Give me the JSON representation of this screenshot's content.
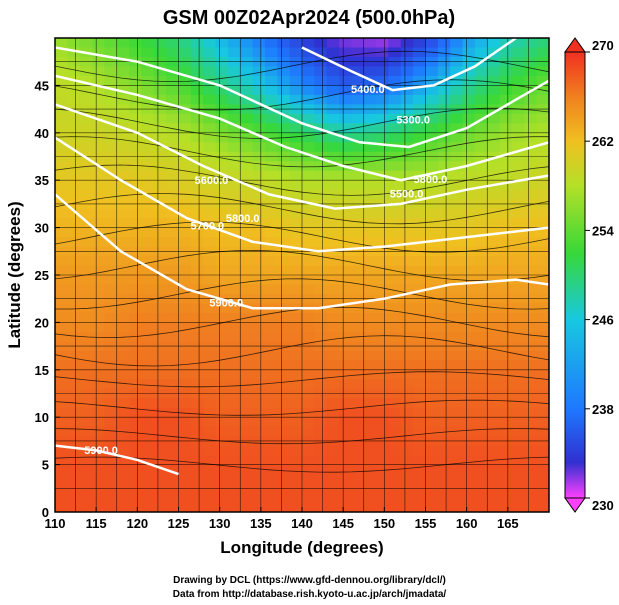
{
  "chart_data": {
    "type": "heatmap",
    "title": "GSM 00Z02Apr2024 (500.0hPa)",
    "xlabel": "Longitude (degrees)",
    "ylabel": "Latitude  (degrees)",
    "xlim": [
      110,
      170
    ],
    "ylim": [
      0,
      50
    ],
    "x_ticks": [
      "110",
      "115",
      "120",
      "125",
      "130",
      "135",
      "140",
      "145",
      "150",
      "155",
      "160",
      "165"
    ],
    "y_ticks": [
      "0",
      "5",
      "10",
      "15",
      "20",
      "25",
      "30",
      "35",
      "40",
      "45"
    ],
    "colorbar": {
      "min": 230,
      "max": 270,
      "tick_labels": [
        "230",
        "238",
        "246",
        "254",
        "262",
        "270"
      ],
      "colors": [
        "#ff40ff",
        "#3030d0",
        "#1e78ff",
        "#18c8e0",
        "#38d838",
        "#b4e028",
        "#f0c020",
        "#f08020",
        "#f03020"
      ]
    },
    "contour_labels": [
      "5400.0",
      "5400.0",
      "5300.0",
      "5800.0",
      "5500.0",
      "5600.0",
      "5700.0",
      "5800.0",
      "5900.0",
      "5900.0"
    ],
    "contours_m": [
      {
        "level": 5400,
        "points": [
          [
            140,
            49
          ],
          [
            146,
            46.5
          ],
          [
            151,
            44.5
          ],
          [
            156,
            45
          ],
          [
            161,
            47
          ],
          [
            166,
            50
          ]
        ]
      },
      {
        "level": 5500,
        "points": [
          [
            110,
            49
          ],
          [
            120,
            47.5
          ],
          [
            130,
            45
          ],
          [
            140,
            41
          ],
          [
            147,
            39
          ],
          [
            153,
            38.5
          ],
          [
            160,
            40.5
          ],
          [
            166,
            43.5
          ],
          [
            170,
            45.5
          ]
        ]
      },
      {
        "level": 5600,
        "points": [
          [
            110,
            46
          ],
          [
            120,
            44
          ],
          [
            130,
            41.5
          ],
          [
            138,
            38.5
          ],
          [
            145,
            36.5
          ],
          [
            152,
            35
          ],
          [
            160,
            36.5
          ],
          [
            170,
            39
          ]
        ]
      },
      {
        "level": 5700,
        "points": [
          [
            110,
            43
          ],
          [
            120,
            40
          ],
          [
            128,
            36.5
          ],
          [
            136,
            33.5
          ],
          [
            144,
            32
          ],
          [
            152,
            32.5
          ],
          [
            160,
            34
          ],
          [
            170,
            35.5
          ]
        ]
      },
      {
        "level": 5800,
        "points": [
          [
            110,
            39.5
          ],
          [
            118,
            35
          ],
          [
            126,
            31
          ],
          [
            134,
            28.5
          ],
          [
            142,
            27.5
          ],
          [
            150,
            28
          ],
          [
            160,
            29
          ],
          [
            170,
            30
          ]
        ]
      },
      {
        "level": 5900,
        "points": [
          [
            110,
            33.5
          ],
          [
            118,
            27.5
          ],
          [
            126,
            23.5
          ],
          [
            134,
            21.5
          ],
          [
            142,
            21.5
          ],
          [
            150,
            22.5
          ],
          [
            158,
            24
          ],
          [
            166,
            24.5
          ],
          [
            170,
            24
          ]
        ]
      },
      {
        "level": 5900,
        "points": [
          [
            110,
            7
          ],
          [
            115,
            6.5
          ],
          [
            120,
            5.5
          ],
          [
            125,
            4
          ]
        ]
      }
    ],
    "temperature_field_K": [
      {
        "lat": 50,
        "values": [
          254,
          252,
          250,
          248,
          244,
          240,
          236,
          233,
          232,
          236,
          242,
          246,
          248
        ]
      },
      {
        "lat": 45,
        "values": [
          256,
          255,
          253,
          251,
          248,
          245,
          241,
          238,
          239,
          243,
          247,
          250,
          252
        ]
      },
      {
        "lat": 40,
        "values": [
          257,
          257,
          256,
          255,
          253,
          251,
          249,
          247,
          248,
          250,
          252,
          254,
          255
        ]
      },
      {
        "lat": 35,
        "values": [
          259,
          259,
          259,
          258,
          257,
          256,
          255,
          255,
          255,
          255,
          256,
          256,
          257
        ]
      },
      {
        "lat": 30,
        "values": [
          261,
          261,
          261,
          261,
          260,
          260,
          259,
          259,
          259,
          259,
          259,
          260,
          260
        ]
      },
      {
        "lat": 25,
        "values": [
          263,
          263,
          263,
          263,
          262,
          262,
          262,
          262,
          262,
          262,
          262,
          262,
          262
        ]
      },
      {
        "lat": 20,
        "values": [
          264,
          264,
          265,
          265,
          265,
          265,
          265,
          264,
          264,
          264,
          264,
          264,
          264
        ]
      },
      {
        "lat": 15,
        "values": [
          266,
          266,
          266,
          266,
          266,
          266,
          266,
          266,
          266,
          266,
          266,
          266,
          266
        ]
      },
      {
        "lat": 10,
        "values": [
          267,
          267,
          268,
          268,
          267,
          267,
          267,
          268,
          268,
          267,
          267,
          267,
          267
        ]
      },
      {
        "lat": 5,
        "values": [
          268,
          268,
          268,
          268,
          268,
          268,
          268,
          268,
          268,
          268,
          268,
          268,
          268
        ]
      },
      {
        "lat": 0,
        "values": [
          268,
          268,
          268,
          268,
          268,
          268,
          268,
          268,
          268,
          268,
          268,
          268,
          268
        ]
      }
    ]
  },
  "credits": {
    "line1": "Drawing by DCL (https://www.gfd-dennou.org/library/dcl/)",
    "line2": "Data from http://database.rish.kyoto-u.ac.jp/arch/jmadata/"
  }
}
